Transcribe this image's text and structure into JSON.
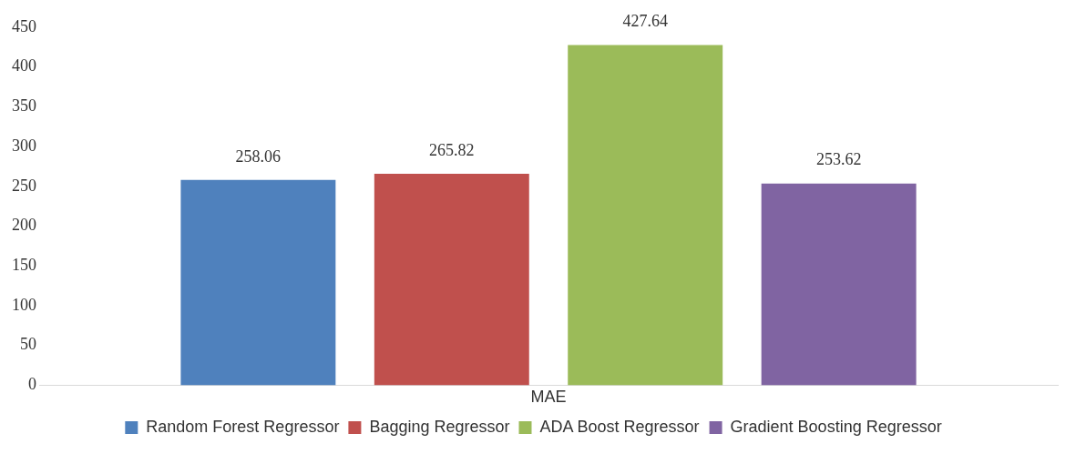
{
  "chart_data": {
    "type": "bar",
    "categories": [
      "MAE"
    ],
    "series": [
      {
        "name": "Random Forest Regressor",
        "color": "#4f81bd",
        "values": [
          258.06
        ]
      },
      {
        "name": "Bagging Regressor",
        "color": "#c0504d",
        "values": [
          265.82
        ]
      },
      {
        "name": "ADA Boost Regressor",
        "color": "#9bbb59",
        "values": [
          427.64
        ]
      },
      {
        "name": "Gradient Boosting Regressor",
        "color": "#8064a2",
        "values": [
          253.62
        ]
      }
    ],
    "ylim": [
      0,
      450
    ],
    "yticks": [
      0,
      50,
      100,
      150,
      200,
      250,
      300,
      350,
      400,
      450
    ],
    "grid": false,
    "legend": "bottom",
    "data_labels": true
  }
}
